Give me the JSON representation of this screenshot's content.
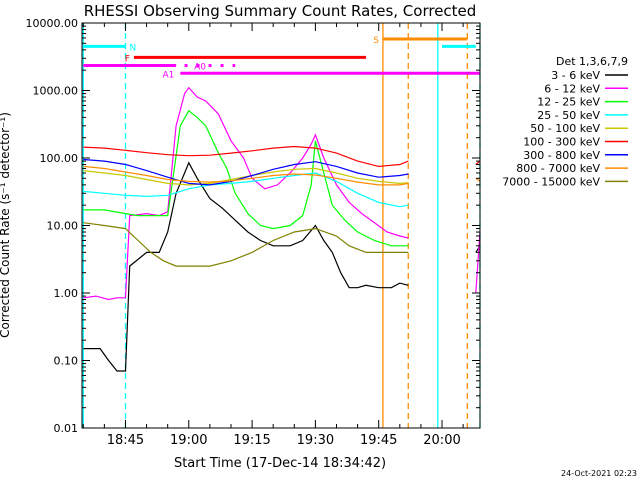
{
  "chart_data": {
    "type": "line",
    "title": "RHESSI Observing Summary Count Rates, Corrected",
    "xlabel": "Start Time (17-Dec-14 18:34:42)",
    "ylabel": "Corrected Count Rate (s⁻¹ detector⁻¹)",
    "y_scale": "log",
    "ylim": [
      0.01,
      10000
    ],
    "xlim": [
      "18:34:42",
      "20:09:00"
    ],
    "x_ticks": [
      "18:45",
      "19:00",
      "19:15",
      "19:30",
      "19:45",
      "20:00"
    ],
    "y_ticks": [
      "0.01",
      "0.10",
      "1.00",
      "10.00",
      "100.00",
      "1000.00",
      "10000.00"
    ],
    "legend_title": "Det 1,3,6,7,9",
    "legend_position": "right",
    "timestamp": "24-Oct-2021 02:23",
    "series": [
      {
        "name": "3 - 6 keV",
        "color": "#000000",
        "points": [
          [
            "18:35",
            0.15
          ],
          [
            "18:39",
            0.15
          ],
          [
            "18:41",
            0.1
          ],
          [
            "18:43",
            0.07
          ],
          [
            "18:45",
            0.07
          ],
          [
            "18:46",
            2.5
          ],
          [
            "18:50",
            4
          ],
          [
            "18:53",
            4
          ],
          [
            "18:55",
            8
          ],
          [
            "18:57",
            30
          ],
          [
            "18:59",
            60
          ],
          [
            "19:00",
            85
          ],
          [
            "19:02",
            50
          ],
          [
            "19:05",
            25
          ],
          [
            "19:08",
            18
          ],
          [
            "19:11",
            12
          ],
          [
            "19:14",
            8
          ],
          [
            "19:17",
            6
          ],
          [
            "19:20",
            5
          ],
          [
            "19:24",
            5
          ],
          [
            "19:27",
            6
          ],
          [
            "19:30",
            10
          ],
          [
            "19:32",
            6
          ],
          [
            "19:34",
            4
          ],
          [
            "19:36",
            2
          ],
          [
            "19:38",
            1.2
          ],
          [
            "19:40",
            1.2
          ],
          [
            "19:42",
            1.3
          ],
          [
            "19:45",
            1.2
          ],
          [
            "19:48",
            1.2
          ],
          [
            "19:50",
            1.4
          ],
          [
            "19:52",
            1.3
          ]
        ]
      },
      {
        "name": "6 - 12 keV",
        "color": "#ff00ff",
        "points": [
          [
            "18:35",
            0.85
          ],
          [
            "18:38",
            0.9
          ],
          [
            "18:41",
            0.8
          ],
          [
            "18:43",
            0.85
          ],
          [
            "18:45",
            0.85
          ],
          [
            "18:46",
            14
          ],
          [
            "18:50",
            15
          ],
          [
            "18:53",
            14
          ],
          [
            "18:55",
            16
          ],
          [
            "18:57",
            300
          ],
          [
            "18:59",
            900
          ],
          [
            "19:00",
            1100
          ],
          [
            "19:02",
            800
          ],
          [
            "19:04",
            700
          ],
          [
            "19:07",
            450
          ],
          [
            "19:10",
            180
          ],
          [
            "19:13",
            100
          ],
          [
            "19:15",
            50
          ],
          [
            "19:18",
            35
          ],
          [
            "19:21",
            40
          ],
          [
            "19:24",
            60
          ],
          [
            "19:27",
            100
          ],
          [
            "19:29",
            160
          ],
          [
            "19:30",
            220
          ],
          [
            "19:32",
            100
          ],
          [
            "19:35",
            40
          ],
          [
            "19:38",
            22
          ],
          [
            "19:41",
            15
          ],
          [
            "19:44",
            11
          ],
          [
            "19:47",
            8
          ],
          [
            "19:50",
            7
          ],
          [
            "19:52",
            6.5
          ]
        ]
      },
      {
        "name": "12 - 25 keV",
        "color": "#00ff00",
        "points": [
          [
            "18:35",
            17
          ],
          [
            "18:40",
            17
          ],
          [
            "18:45",
            15
          ],
          [
            "18:48",
            14
          ],
          [
            "18:52",
            14
          ],
          [
            "18:55",
            14
          ],
          [
            "18:58",
            300
          ],
          [
            "19:00",
            500
          ],
          [
            "19:02",
            400
          ],
          [
            "19:04",
            300
          ],
          [
            "19:07",
            120
          ],
          [
            "19:09",
            70
          ],
          [
            "19:11",
            30
          ],
          [
            "19:14",
            15
          ],
          [
            "19:17",
            10
          ],
          [
            "19:20",
            9
          ],
          [
            "19:24",
            10
          ],
          [
            "19:27",
            14
          ],
          [
            "19:29",
            40
          ],
          [
            "19:30",
            180
          ],
          [
            "19:32",
            60
          ],
          [
            "19:34",
            20
          ],
          [
            "19:37",
            12
          ],
          [
            "19:40",
            8
          ],
          [
            "19:44",
            6
          ],
          [
            "19:48",
            5
          ],
          [
            "19:52",
            5
          ]
        ]
      },
      {
        "name": "25 - 50 keV",
        "color": "#00ffff",
        "points": [
          [
            "18:35",
            32
          ],
          [
            "18:40",
            30
          ],
          [
            "18:45",
            28
          ],
          [
            "18:50",
            27
          ],
          [
            "18:55",
            28
          ],
          [
            "19:00",
            35
          ],
          [
            "19:05",
            40
          ],
          [
            "19:10",
            42
          ],
          [
            "19:15",
            45
          ],
          [
            "19:20",
            50
          ],
          [
            "19:25",
            55
          ],
          [
            "19:30",
            60
          ],
          [
            "19:35",
            45
          ],
          [
            "19:40",
            30
          ],
          [
            "19:45",
            22
          ],
          [
            "19:50",
            19
          ],
          [
            "19:52",
            20
          ]
        ]
      },
      {
        "name": "50 - 100 keV",
        "color": "#c8c800",
        "points": [
          [
            "18:35",
            65
          ],
          [
            "18:40",
            60
          ],
          [
            "18:45",
            55
          ],
          [
            "18:50",
            48
          ],
          [
            "18:55",
            42
          ],
          [
            "19:00",
            40
          ],
          [
            "19:05",
            42
          ],
          [
            "19:10",
            48
          ],
          [
            "19:15",
            55
          ],
          [
            "19:20",
            62
          ],
          [
            "19:25",
            68
          ],
          [
            "19:30",
            70
          ],
          [
            "19:35",
            60
          ],
          [
            "19:40",
            50
          ],
          [
            "19:45",
            45
          ],
          [
            "19:50",
            42
          ],
          [
            "19:52",
            43
          ]
        ]
      },
      {
        "name": "100 - 300 keV",
        "color": "#ff0000",
        "points": [
          [
            "18:35",
            145
          ],
          [
            "18:40",
            140
          ],
          [
            "18:45",
            130
          ],
          [
            "18:50",
            120
          ],
          [
            "18:55",
            112
          ],
          [
            "19:00",
            108
          ],
          [
            "19:05",
            110
          ],
          [
            "19:10",
            118
          ],
          [
            "19:15",
            128
          ],
          [
            "19:20",
            140
          ],
          [
            "19:25",
            148
          ],
          [
            "19:30",
            140
          ],
          [
            "19:35",
            118
          ],
          [
            "19:40",
            90
          ],
          [
            "19:45",
            75
          ],
          [
            "19:50",
            80
          ],
          [
            "19:52",
            90
          ]
        ]
      },
      {
        "name": "300 - 800 keV",
        "color": "#0000ff",
        "points": [
          [
            "18:35",
            95
          ],
          [
            "18:40",
            90
          ],
          [
            "18:45",
            80
          ],
          [
            "18:50",
            65
          ],
          [
            "18:55",
            52
          ],
          [
            "19:00",
            42
          ],
          [
            "19:05",
            40
          ],
          [
            "19:10",
            45
          ],
          [
            "19:15",
            55
          ],
          [
            "19:20",
            68
          ],
          [
            "19:25",
            80
          ],
          [
            "19:30",
            88
          ],
          [
            "19:35",
            75
          ],
          [
            "19:40",
            60
          ],
          [
            "19:45",
            52
          ],
          [
            "19:50",
            55
          ],
          [
            "19:52",
            58
          ]
        ]
      },
      {
        "name": "800 - 7000 keV",
        "color": "#ff8c00",
        "points": [
          [
            "18:35",
            75
          ],
          [
            "18:40",
            70
          ],
          [
            "18:45",
            62
          ],
          [
            "18:50",
            55
          ],
          [
            "18:55",
            48
          ],
          [
            "19:00",
            45
          ],
          [
            "19:05",
            44
          ],
          [
            "19:10",
            46
          ],
          [
            "19:15",
            50
          ],
          [
            "19:20",
            55
          ],
          [
            "19:25",
            58
          ],
          [
            "19:30",
            56
          ],
          [
            "19:35",
            50
          ],
          [
            "19:40",
            44
          ],
          [
            "19:45",
            40
          ],
          [
            "19:50",
            40
          ],
          [
            "19:52",
            42
          ]
        ]
      },
      {
        "name": "7000 - 15000 keV",
        "color": "#808000",
        "points": [
          [
            "18:35",
            11
          ],
          [
            "18:40",
            10
          ],
          [
            "18:45",
            9
          ],
          [
            "18:48",
            6
          ],
          [
            "18:51",
            4
          ],
          [
            "18:54",
            3
          ],
          [
            "18:57",
            2.5
          ],
          [
            "19:00",
            2.5
          ],
          [
            "19:05",
            2.5
          ],
          [
            "19:10",
            3
          ],
          [
            "19:15",
            4
          ],
          [
            "19:20",
            6
          ],
          [
            "19:25",
            8
          ],
          [
            "19:30",
            9
          ],
          [
            "19:35",
            7
          ],
          [
            "19:38",
            5
          ],
          [
            "19:42",
            4
          ],
          [
            "19:46",
            4
          ],
          [
            "19:50",
            4
          ],
          [
            "19:52",
            4
          ]
        ]
      }
    ],
    "flag_bars": [
      {
        "label": "N",
        "color": "#00ffff",
        "y": 4500,
        "segments": [
          [
            "18:35",
            "18:45"
          ],
          [
            "20:00",
            "20:08"
          ]
        ]
      },
      {
        "label": "F",
        "color": "#ff0000",
        "y": 3100,
        "segments": [
          [
            "18:47",
            "19:42"
          ]
        ]
      },
      {
        "label": "A0",
        "color": "#ff00ff",
        "y": 2350,
        "segments": [
          [
            "18:35",
            "18:57"
          ]
        ],
        "dotted": [
          [
            "18:59",
            "19:11"
          ]
        ]
      },
      {
        "label": "A1",
        "color": "#ff00ff",
        "y": 1800,
        "segments": [
          [
            "18:58",
            "20:09"
          ]
        ]
      },
      {
        "label": "S",
        "color": "#ff8c00",
        "y": 5800,
        "segments": [
          [
            "19:46",
            "20:06"
          ]
        ]
      }
    ],
    "vertical_lines": [
      {
        "time": "18:35",
        "color": "#00ffff",
        "style": "solid"
      },
      {
        "time": "18:45",
        "color": "#00ffff",
        "style": "dashed"
      },
      {
        "time": "19:46",
        "color": "#ff8c00",
        "style": "solid"
      },
      {
        "time": "19:52",
        "color": "#ff8c00",
        "style": "dashed"
      },
      {
        "time": "19:59",
        "color": "#00ffff",
        "style": "solid"
      },
      {
        "time": "20:06",
        "color": "#ff8c00",
        "style": "dashed"
      },
      {
        "time": "20:09",
        "color": "#00ffff",
        "style": "dashed"
      }
    ],
    "tail_series": [
      {
        "name": "3 - 6 keV",
        "color": "#000000",
        "points": [
          [
            "20:08",
            4
          ],
          [
            "20:09",
            5
          ]
        ]
      },
      {
        "name": "6 - 12 keV",
        "color": "#ff00ff",
        "points": [
          [
            "20:08",
            1
          ],
          [
            "20:09",
            8
          ]
        ]
      },
      {
        "name": "100 - 300 keV",
        "color": "#ff0000",
        "points": [
          [
            "20:08",
            80
          ],
          [
            "20:09",
            90
          ]
        ]
      },
      {
        "name": "800 - 7000 keV",
        "color": "#ff8c00",
        "points": [
          [
            "20:08",
            50
          ],
          [
            "20:09",
            45
          ]
        ]
      }
    ]
  }
}
